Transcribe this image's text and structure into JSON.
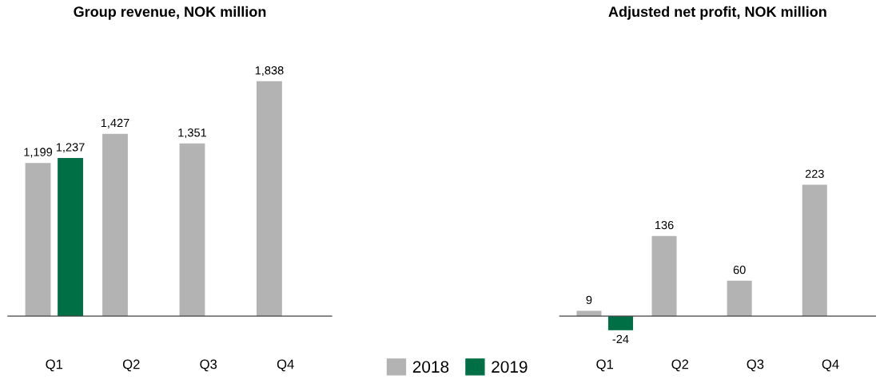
{
  "chart_data": [
    {
      "type": "bar",
      "title": "Group revenue, NOK million",
      "categories": [
        "Q1",
        "Q2",
        "Q3",
        "Q4"
      ],
      "series": [
        {
          "name": "2018",
          "color": "#b3b3b3",
          "values": [
            1199,
            1427,
            1351,
            1838
          ],
          "value_labels": [
            "1,199",
            "1,427",
            "1,351",
            "1,838"
          ]
        },
        {
          "name": "2019",
          "color": "#006f45",
          "values": [
            1237,
            null,
            null,
            null
          ],
          "value_labels": [
            "1,237",
            null,
            null,
            null
          ]
        }
      ],
      "legend": "bottom",
      "grid": false
    },
    {
      "type": "bar",
      "title": "Adjusted net profit, NOK million",
      "categories": [
        "Q1",
        "Q2",
        "Q3",
        "Q4"
      ],
      "series": [
        {
          "name": "2018",
          "color": "#b3b3b3",
          "values": [
            9,
            136,
            60,
            223
          ],
          "value_labels": [
            "9",
            "136",
            "60",
            "223"
          ]
        },
        {
          "name": "2019",
          "color": "#006f45",
          "values": [
            -24,
            null,
            null,
            null
          ],
          "value_labels": [
            "-24",
            null,
            null,
            null
          ]
        }
      ],
      "legend": "bottom",
      "grid": false
    }
  ]
}
